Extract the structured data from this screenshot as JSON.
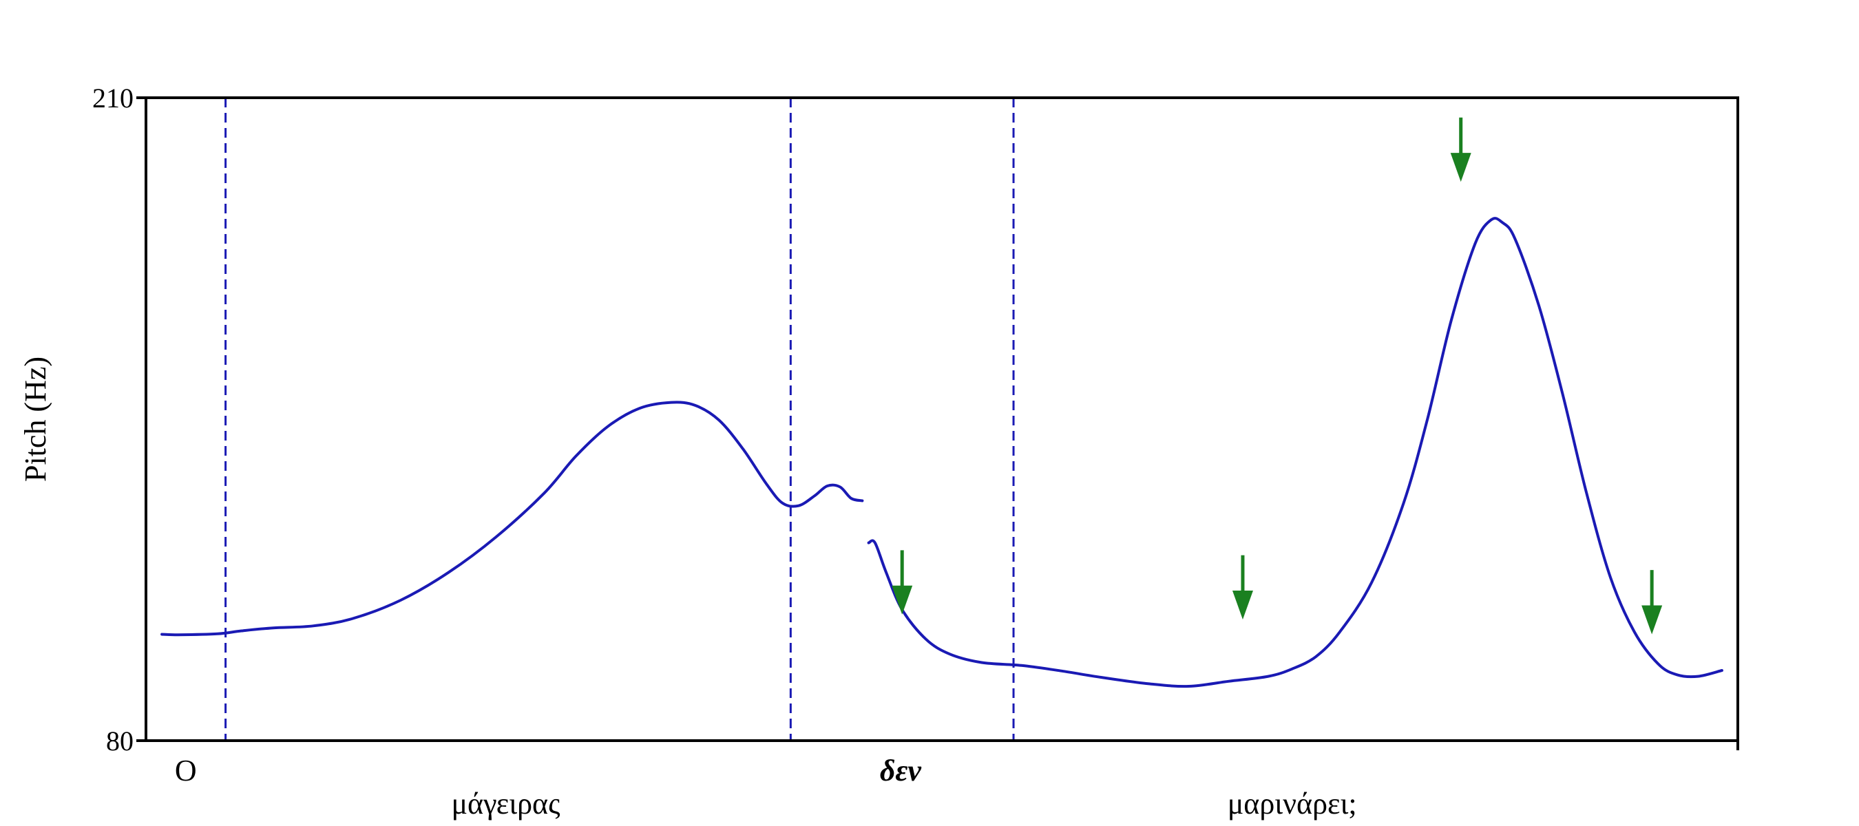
{
  "chart_data": {
    "type": "line",
    "title": "",
    "ylabel": "Pitch (Hz)",
    "xlabel": "",
    "ylim": [
      80,
      210
    ],
    "y_ticks": [
      "210",
      "80"
    ],
    "grid": false,
    "x_domain": [
      0,
      1
    ],
    "line_color": "#1a1ab4",
    "boundary_color": "#1a1ab4",
    "arrow_color": "#1a8020",
    "series": [
      {
        "segments": [
          [
            [
              0.01,
              101.5
            ],
            [
              0.02,
              101.4
            ],
            [
              0.045,
              101.6
            ],
            [
              0.06,
              102.2
            ],
            [
              0.08,
              102.8
            ],
            [
              0.105,
              103.2
            ],
            [
              0.13,
              104.7
            ],
            [
              0.16,
              108.4
            ],
            [
              0.19,
              114.0
            ],
            [
              0.22,
              121.2
            ],
            [
              0.25,
              130.0
            ],
            [
              0.27,
              137.5
            ],
            [
              0.29,
              143.5
            ],
            [
              0.31,
              147.2
            ],
            [
              0.33,
              148.4
            ],
            [
              0.345,
              147.8
            ],
            [
              0.36,
              144.8
            ],
            [
              0.375,
              139.0
            ],
            [
              0.39,
              131.8
            ],
            [
              0.4,
              128.0
            ],
            [
              0.41,
              127.5
            ],
            [
              0.42,
              129.5
            ],
            [
              0.428,
              131.5
            ],
            [
              0.436,
              131.3
            ],
            [
              0.443,
              129.0
            ],
            [
              0.45,
              128.5
            ]
          ],
          [
            [
              0.454,
              120.0
            ],
            [
              0.458,
              120.0
            ],
            [
              0.465,
              114.0
            ],
            [
              0.475,
              106.5
            ],
            [
              0.49,
              100.5
            ],
            [
              0.505,
              97.5
            ],
            [
              0.525,
              95.8
            ],
            [
              0.55,
              95.2
            ],
            [
              0.575,
              94.1
            ],
            [
              0.6,
              92.8
            ],
            [
              0.63,
              91.5
            ],
            [
              0.655,
              91.0
            ],
            [
              0.68,
              92.0
            ],
            [
              0.705,
              93.0
            ],
            [
              0.72,
              94.5
            ],
            [
              0.735,
              97.0
            ],
            [
              0.75,
              102.0
            ],
            [
              0.77,
              112.0
            ],
            [
              0.79,
              128.0
            ],
            [
              0.805,
              145.0
            ],
            [
              0.82,
              165.0
            ],
            [
              0.835,
              180.5
            ],
            [
              0.845,
              185.3
            ],
            [
              0.852,
              184.8
            ],
            [
              0.86,
              181.5
            ],
            [
              0.875,
              168.0
            ],
            [
              0.89,
              150.0
            ],
            [
              0.905,
              130.0
            ],
            [
              0.92,
              113.0
            ],
            [
              0.935,
              102.0
            ],
            [
              0.95,
              95.5
            ],
            [
              0.962,
              93.3
            ],
            [
              0.975,
              93.0
            ],
            [
              0.99,
              94.2
            ]
          ]
        ]
      }
    ],
    "boundaries": [
      0.05,
      0.405,
      0.545
    ],
    "arrows": [
      {
        "x": 0.475,
        "y_top": 118.5,
        "y_tip": 105.5
      },
      {
        "x": 0.689,
        "y_top": 117.5,
        "y_tip": 104.5
      },
      {
        "x": 0.826,
        "y_top": 206.0,
        "y_tip": 193.0
      },
      {
        "x": 0.946,
        "y_top": 114.5,
        "y_tip": 101.5
      }
    ],
    "annotations": [
      {
        "text": "Ο",
        "x": 0.025,
        "row": 1,
        "italic": false
      },
      {
        "text": "μάγειρας",
        "x": 0.226,
        "row": 2,
        "italic": false
      },
      {
        "text": "δεν",
        "x": 0.474,
        "row": 1,
        "italic": true
      },
      {
        "text": "μαρινάρει;",
        "x": 0.72,
        "row": 2,
        "italic": false
      }
    ]
  }
}
